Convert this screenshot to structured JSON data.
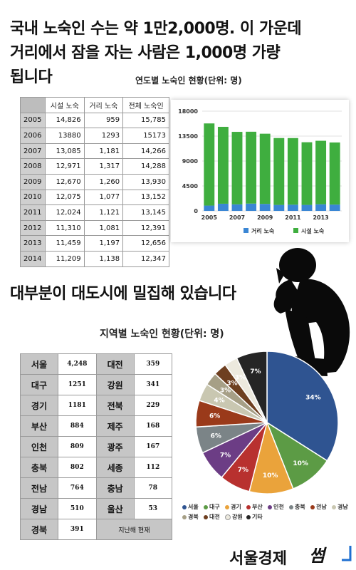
{
  "headline": {
    "line1": "국내 노숙인 수는 약 1만2,000명. 이 가운데",
    "line2": "거리에서 잠을 자는 사람은 1,000명 가량",
    "line3": "됩니다"
  },
  "yearly": {
    "title": "연도별 노숙인 현황(단위: 명)",
    "headers": [
      "시설 노숙",
      "거리 노숙",
      "전체 노숙인"
    ],
    "rows": [
      {
        "year": "2005",
        "facility": "14,826",
        "street": "959",
        "total": "15,785"
      },
      {
        "year": "2006",
        "facility": "13880",
        "street": "1293",
        "total": "15173"
      },
      {
        "year": "2007",
        "facility": "13,085",
        "street": "1,181",
        "total": "14,266"
      },
      {
        "year": "2008",
        "facility": "12,971",
        "street": "1,317",
        "total": "14,288"
      },
      {
        "year": "2009",
        "facility": "12,670",
        "street": "1,260",
        "total": "13,930"
      },
      {
        "year": "2010",
        "facility": "12,075",
        "street": "1,077",
        "total": "13,152"
      },
      {
        "year": "2011",
        "facility": "12,024",
        "street": "1,121",
        "total": "13,145"
      },
      {
        "year": "2012",
        "facility": "11,310",
        "street": "1,081",
        "total": "12,391"
      },
      {
        "year": "2013",
        "facility": "11,459",
        "street": "1,197",
        "total": "12,656"
      },
      {
        "year": "2014",
        "facility": "11,209",
        "street": "1,138",
        "total": "12,347"
      }
    ]
  },
  "headline2": "대부분이 대도시에 밀집해 있습니다",
  "region": {
    "title": "지역별 노숙인 현황(단위: 명)",
    "rows": [
      [
        {
          "name": "서울",
          "value": "4,248"
        },
        {
          "name": "대전",
          "value": "359"
        }
      ],
      [
        {
          "name": "대구",
          "value": "1251"
        },
        {
          "name": "강원",
          "value": "341"
        }
      ],
      [
        {
          "name": "경기",
          "value": "1181"
        },
        {
          "name": "전북",
          "value": "229"
        }
      ],
      [
        {
          "name": "부산",
          "value": "884"
        },
        {
          "name": "제주",
          "value": "168"
        }
      ],
      [
        {
          "name": "인천",
          "value": "809"
        },
        {
          "name": "광주",
          "value": "167"
        }
      ],
      [
        {
          "name": "충북",
          "value": "802"
        },
        {
          "name": "세종",
          "value": "112"
        }
      ],
      [
        {
          "name": "전남",
          "value": "764"
        },
        {
          "name": "충남",
          "value": "78"
        }
      ],
      [
        {
          "name": "경남",
          "value": "510"
        },
        {
          "name": "울산",
          "value": "53"
        }
      ]
    ],
    "last_row": {
      "name": "경북",
      "value": "391",
      "note": "지난해 현재"
    }
  },
  "logo": {
    "text": "서울경제",
    "mark": "썸"
  },
  "chart_data": [
    {
      "type": "bar",
      "stacked": true,
      "categories": [
        "2005",
        "2006",
        "2007",
        "2008",
        "2009",
        "2010",
        "2011",
        "2012",
        "2013",
        "2014"
      ],
      "x_tick_labels": [
        "2005",
        "2007",
        "2009",
        "2011",
        "2013"
      ],
      "series": [
        {
          "name": "거리 노숙",
          "values": [
            959,
            1293,
            1181,
            1317,
            1260,
            1077,
            1121,
            1081,
            1197,
            1138
          ],
          "color": "#3a86d4"
        },
        {
          "name": "시설 노숙",
          "values": [
            14826,
            13880,
            13085,
            12971,
            12670,
            12075,
            12024,
            11310,
            11459,
            11209
          ],
          "color": "#3fae3f"
        }
      ],
      "ylim": [
        0,
        18000
      ],
      "y_ticks": [
        "0",
        "4500",
        "9000",
        "13500",
        "18000"
      ],
      "grid": true,
      "legend": "bottom"
    },
    {
      "type": "pie",
      "slices": [
        {
          "name": "서울",
          "value": 34,
          "label": "34%",
          "color": "#2f5491"
        },
        {
          "name": "대구",
          "value": 10,
          "label": "10%",
          "color": "#5c9b45"
        },
        {
          "name": "경기",
          "value": 10,
          "label": "10%",
          "color": "#eaa33b"
        },
        {
          "name": "부산",
          "value": 7,
          "label": "7%",
          "color": "#b8312f"
        },
        {
          "name": "인천",
          "value": 7,
          "label": "7%",
          "color": "#6c3d85"
        },
        {
          "name": "충북",
          "value": 6,
          "label": "6%",
          "color": "#7b8487"
        },
        {
          "name": "전남",
          "value": 6,
          "label": "6%",
          "color": "#9a3a1a"
        },
        {
          "name": "경남",
          "value": 4,
          "label": "4%",
          "color": "#c9c7b1"
        },
        {
          "name": "경북",
          "value": 3,
          "label": "3%",
          "color": "#a69f86"
        },
        {
          "name": "대전",
          "value": 3,
          "label": "3%",
          "color": "#6e3f20"
        },
        {
          "name": "강원",
          "value": 3,
          "label": "3%",
          "color": "#ece9de"
        },
        {
          "name": "기타",
          "value": 7,
          "label": "7%",
          "color": "#252525"
        }
      ],
      "legend": "bottom"
    }
  ]
}
